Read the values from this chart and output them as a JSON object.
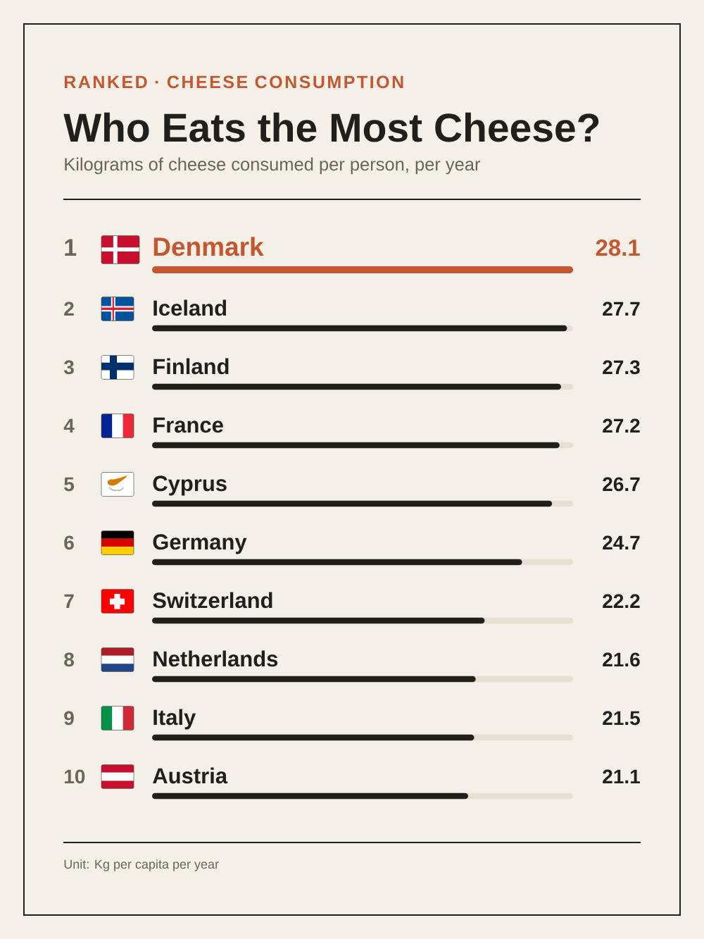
{
  "chart_data": {
    "type": "bar",
    "orientation": "horizontal",
    "title": "Who Eats the Most Cheese?",
    "subtitle": "Kilograms of cheese consumed per person, per year",
    "categories": [
      "Denmark",
      "Iceland",
      "Finland",
      "France",
      "Cyprus",
      "Germany",
      "Switzerland",
      "Netherlands",
      "Italy",
      "Austria"
    ],
    "values": [
      28.1,
      27.7,
      27.3,
      27.2,
      26.7,
      24.7,
      22.2,
      21.6,
      21.5,
      21.1
    ],
    "colors": [
      "#c4572f",
      "#211f1b",
      "#211f1b",
      "#211f1b",
      "#211f1b",
      "#211f1b",
      "#211f1b",
      "#211f1b",
      "#211f1b",
      "#211f1b"
    ],
    "data_labels": true,
    "annotations": [
      "RANKED · CHEESE CONSUMPTION",
      "1",
      "2",
      "3",
      "4",
      "5",
      "6",
      "7",
      "8",
      "9",
      "10",
      "Unit: Kg per capita per year"
    ]
  }
}
